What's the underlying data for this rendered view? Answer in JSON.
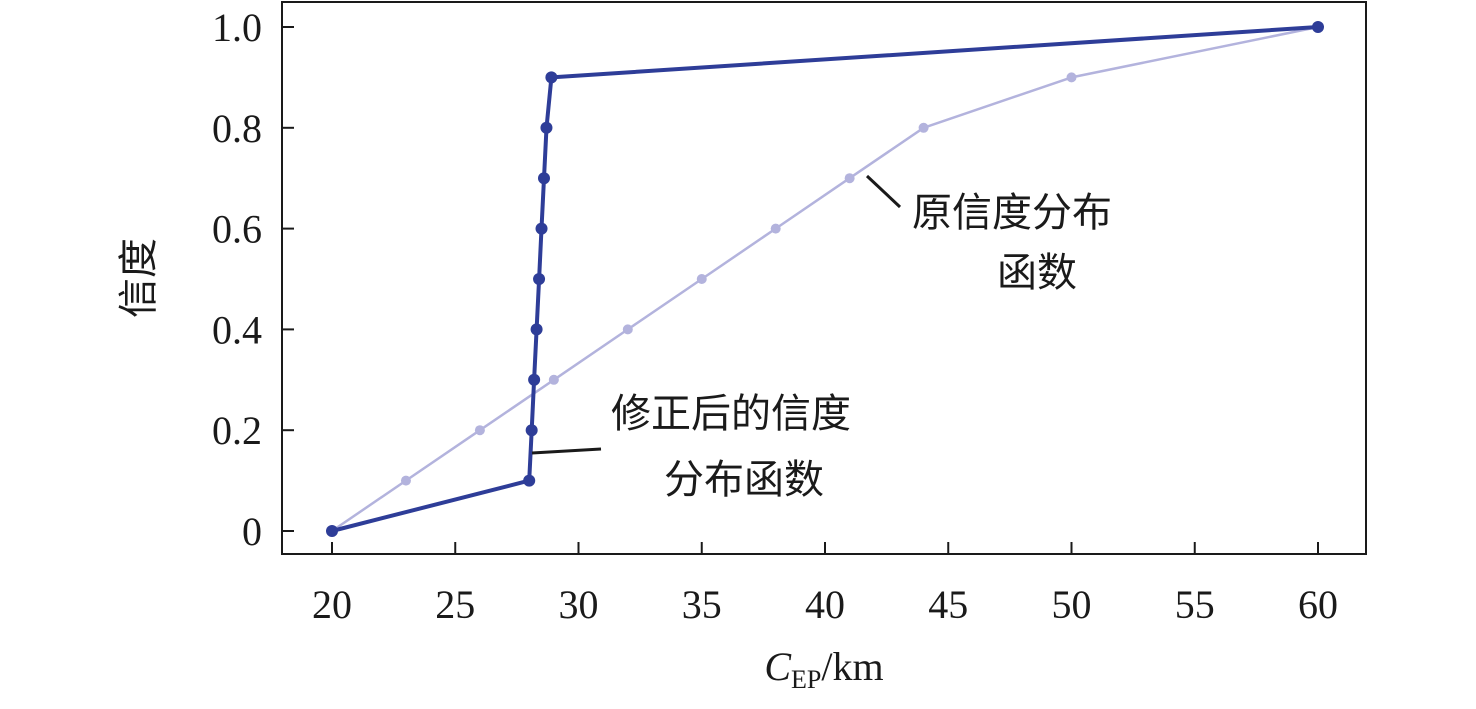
{
  "chart_data": {
    "type": "line",
    "xlabel_main": "C",
    "xlabel_sub": "EP",
    "xlabel_unit": "/km",
    "ylabel": "信度",
    "xlim": [
      20,
      60
    ],
    "ylim": [
      0,
      1.0
    ],
    "x_ticks": [
      20,
      25,
      30,
      35,
      40,
      45,
      50,
      55,
      60
    ],
    "y_ticks": [
      0,
      0.2,
      0.4,
      0.6,
      0.8,
      1.0
    ],
    "x_tick_labels": [
      "20",
      "25",
      "30",
      "35",
      "40",
      "45",
      "50",
      "55",
      "60"
    ],
    "y_tick_labels": [
      "0",
      "0.2",
      "0.4",
      "0.6",
      "0.8",
      "1.0"
    ],
    "grid": false,
    "series": [
      {
        "color": "#b3b3dd",
        "x": [
          20,
          23,
          26,
          29,
          32,
          35,
          38,
          41,
          44,
          50,
          60
        ],
        "y": [
          0,
          0.1,
          0.2,
          0.3,
          0.4,
          0.5,
          0.6,
          0.7,
          0.8,
          0.9,
          1.0
        ]
      },
      {
        "color": "#2e3d98",
        "x": [
          20,
          28,
          28.1,
          28.2,
          28.3,
          28.4,
          28.5,
          28.6,
          28.7,
          28.9,
          60
        ],
        "y": [
          0,
          0.1,
          0.2,
          0.3,
          0.4,
          0.5,
          0.6,
          0.7,
          0.8,
          0.9,
          1.0
        ]
      }
    ],
    "annotations": [
      {
        "lines": [
          "原信度分布",
          "函数"
        ]
      },
      {
        "lines": [
          "修正后的信度",
          "分布函数"
        ]
      }
    ]
  }
}
